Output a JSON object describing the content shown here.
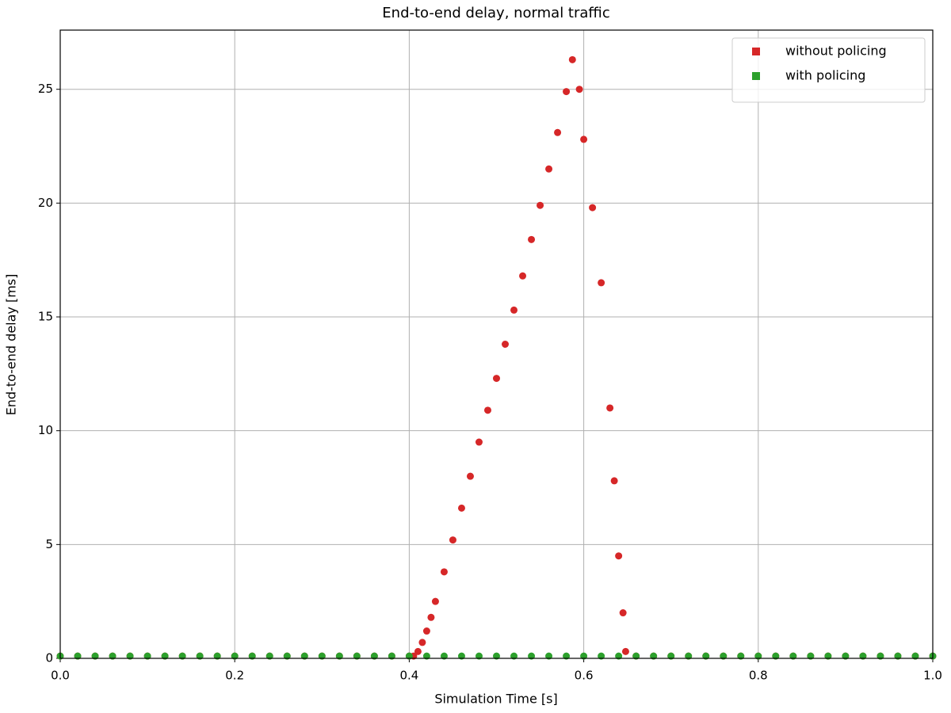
{
  "chart_data": {
    "type": "scatter",
    "title": "End-to-end delay, normal traffic",
    "x_label": "Simulation Time [s]",
    "y_label": "End-to-end delay [ms]",
    "xlim": [
      0,
      1
    ],
    "ylim": [
      0,
      27.6
    ],
    "xticks": [
      {
        "value": 0,
        "label": "0.0"
      },
      0.2,
      0.4,
      0.6,
      0.8,
      {
        "value": 1,
        "label": "1.0"
      }
    ],
    "yticks": [
      0,
      5,
      10,
      15,
      20,
      25
    ],
    "grid": true,
    "legend": "upper right",
    "series": [
      {
        "name": "without policing",
        "color": "#d62728",
        "x": [
          0,
          0.02,
          0.04,
          0.06,
          0.08,
          0.1,
          0.12,
          0.14,
          0.16,
          0.18,
          0.2,
          0.22,
          0.24,
          0.26,
          0.28,
          0.3,
          0.32,
          0.34,
          0.36,
          0.38,
          0.4,
          0.405,
          0.41,
          0.415,
          0.42,
          0.425,
          0.43,
          0.44,
          0.45,
          0.46,
          0.47,
          0.48,
          0.49,
          0.5,
          0.51,
          0.52,
          0.53,
          0.54,
          0.55,
          0.56,
          0.57,
          0.58,
          0.587,
          0.595,
          0.6,
          0.61,
          0.62,
          0.63,
          0.635,
          0.64,
          0.645,
          0.648,
          0.66,
          0.68,
          0.7,
          0.72,
          0.74,
          0.76,
          0.78,
          0.8,
          0.82,
          0.84,
          0.86,
          0.88,
          0.9,
          0.92,
          0.94,
          0.96,
          0.98,
          1.0
        ],
        "values": [
          0.1,
          0.1,
          0.1,
          0.1,
          0.1,
          0.1,
          0.1,
          0.1,
          0.1,
          0.1,
          0.1,
          0.1,
          0.1,
          0.1,
          0.1,
          0.1,
          0.1,
          0.1,
          0.1,
          0.1,
          0.1,
          0.1,
          0.3,
          0.7,
          1.2,
          1.8,
          2.5,
          3.8,
          5.2,
          6.6,
          8.0,
          9.5,
          10.9,
          12.3,
          13.8,
          15.3,
          16.8,
          18.4,
          19.9,
          21.5,
          23.1,
          24.9,
          26.3,
          25.0,
          22.8,
          19.8,
          16.5,
          11.0,
          7.8,
          4.5,
          2.0,
          0.3,
          0.1,
          0.1,
          0.1,
          0.1,
          0.1,
          0.1,
          0.1,
          0.1,
          0.1,
          0.1,
          0.1,
          0.1,
          0.1,
          0.1,
          0.1,
          0.1,
          0.1,
          0.1
        ]
      },
      {
        "name": "with policing",
        "color": "#2ca02c",
        "x": [
          0,
          0.02,
          0.04,
          0.06,
          0.08,
          0.1,
          0.12,
          0.14,
          0.16,
          0.18,
          0.2,
          0.22,
          0.24,
          0.26,
          0.28,
          0.3,
          0.32,
          0.34,
          0.36,
          0.38,
          0.4,
          0.42,
          0.44,
          0.46,
          0.48,
          0.5,
          0.52,
          0.54,
          0.56,
          0.58,
          0.6,
          0.62,
          0.64,
          0.66,
          0.68,
          0.7,
          0.72,
          0.74,
          0.76,
          0.78,
          0.8,
          0.82,
          0.84,
          0.86,
          0.88,
          0.9,
          0.92,
          0.94,
          0.96,
          0.98,
          1.0
        ],
        "values": [
          0.1,
          0.1,
          0.1,
          0.1,
          0.1,
          0.1,
          0.1,
          0.1,
          0.1,
          0.1,
          0.1,
          0.1,
          0.1,
          0.1,
          0.1,
          0.1,
          0.1,
          0.1,
          0.1,
          0.1,
          0.1,
          0.1,
          0.1,
          0.1,
          0.1,
          0.1,
          0.1,
          0.1,
          0.1,
          0.1,
          0.1,
          0.1,
          0.1,
          0.1,
          0.1,
          0.1,
          0.1,
          0.1,
          0.1,
          0.1,
          0.1,
          0.1,
          0.1,
          0.1,
          0.1,
          0.1,
          0.1,
          0.1,
          0.1,
          0.1,
          0.1
        ]
      }
    ]
  }
}
